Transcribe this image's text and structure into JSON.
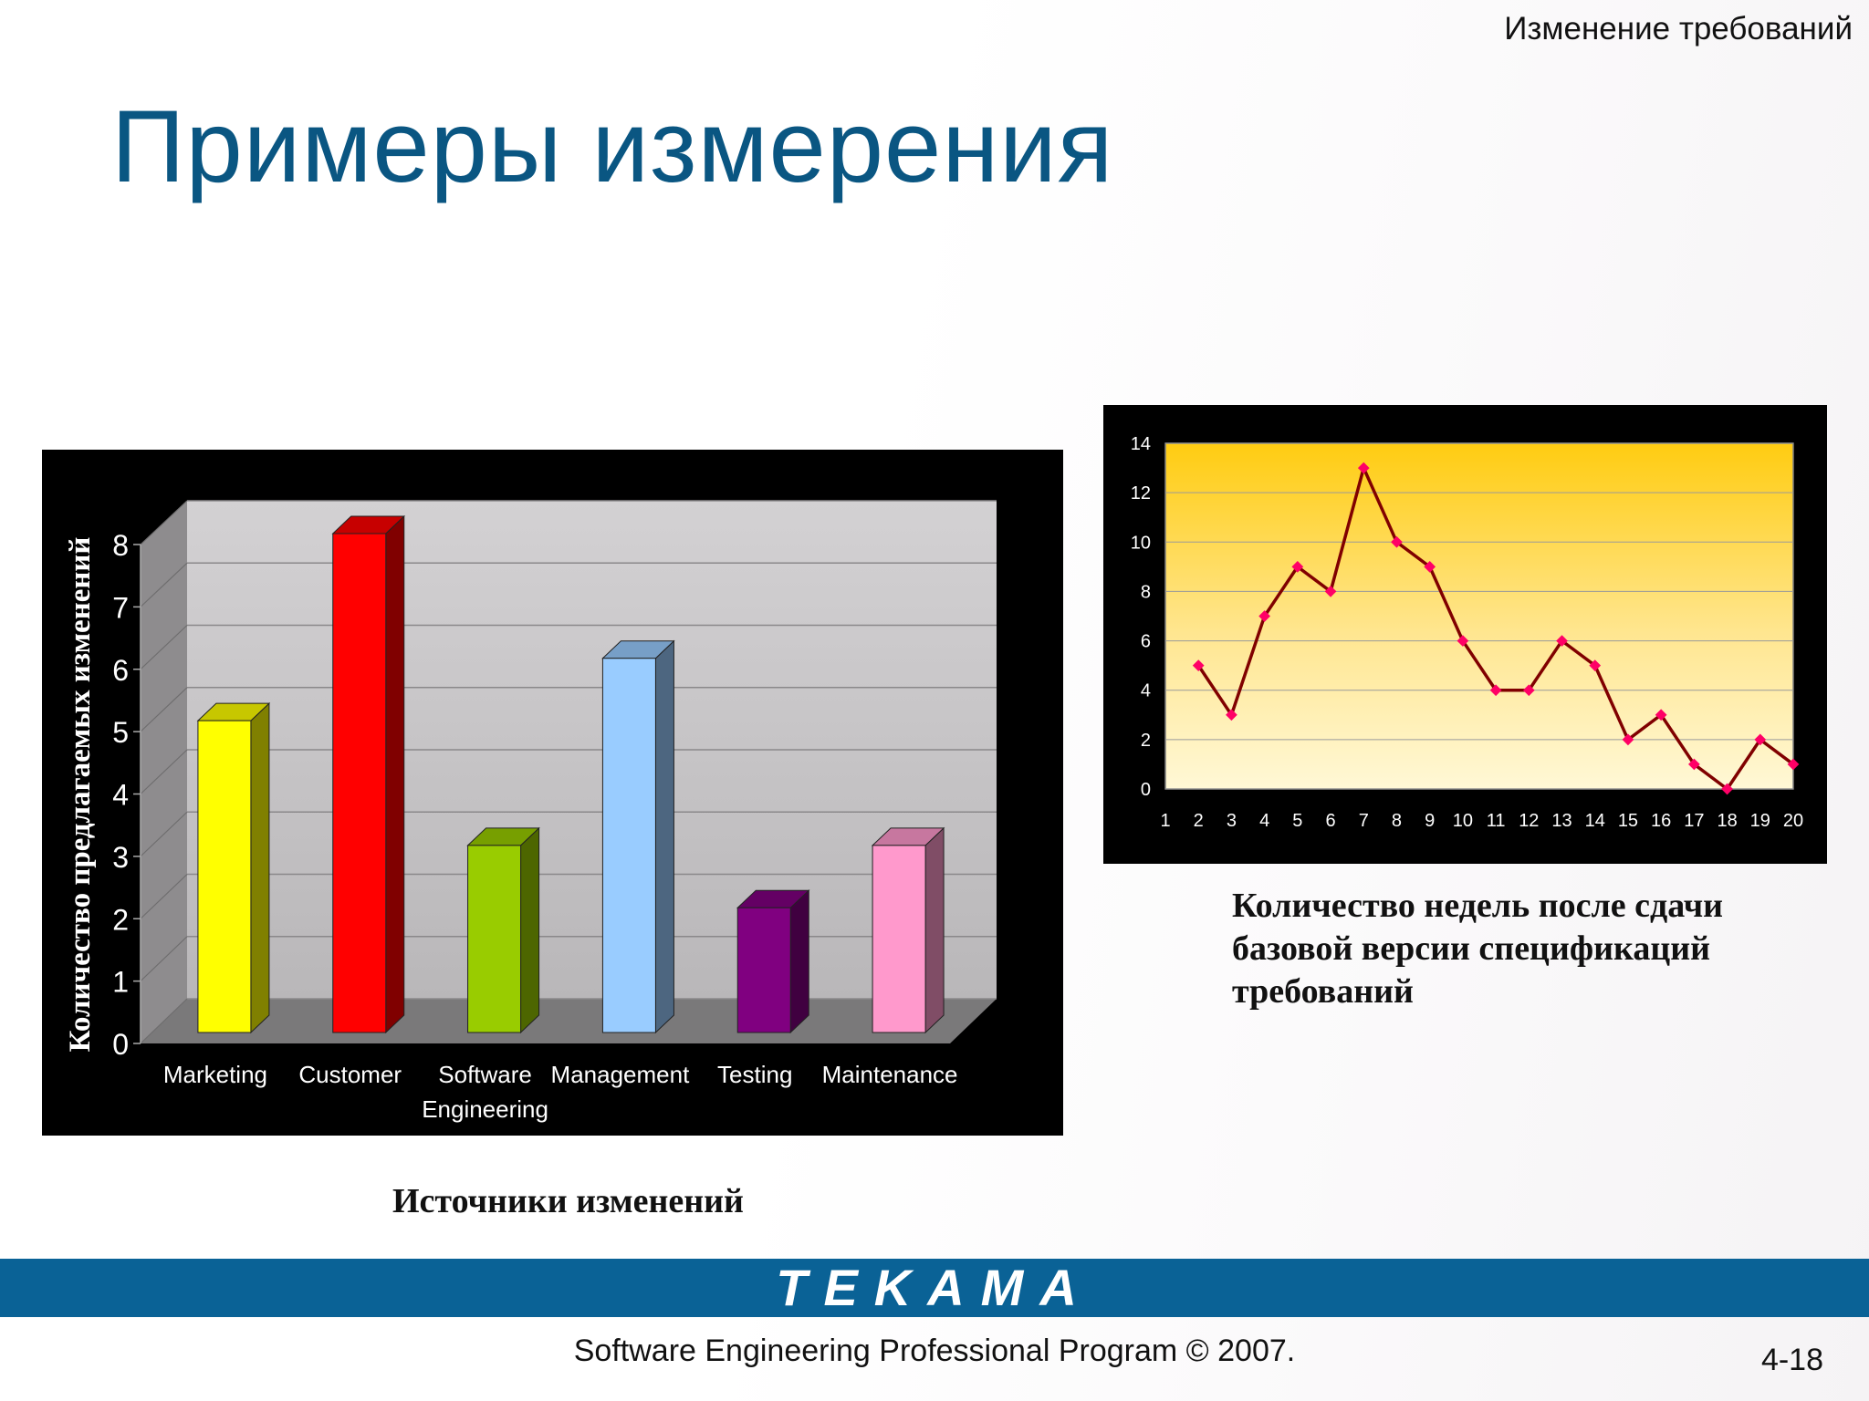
{
  "slide": {
    "header": "Изменение требований",
    "title": "Примеры измерения",
    "brand": "TEKAMA",
    "copyright": "Software Engineering Professional Program © 2007.",
    "page": "4-18"
  },
  "chart_data": [
    {
      "type": "bar",
      "categories": [
        "Marketing",
        "Customer",
        "Software Engineering",
        "Management",
        "Testing",
        "Maintenance"
      ],
      "category_lines": [
        [
          "Marketing"
        ],
        [
          "Customer"
        ],
        [
          "Software",
          "Engineering"
        ],
        [
          "Management"
        ],
        [
          "Testing"
        ],
        [
          "Maintenance"
        ]
      ],
      "values": [
        5,
        8,
        3,
        6,
        2,
        3
      ],
      "colors": [
        "#ffff00",
        "#ff0000",
        "#99cc00",
        "#99ccff",
        "#800080",
        "#ff99cc"
      ],
      "ylabel": "Количество предлагаемых изменений",
      "caption": "Источники изменений",
      "yticks": [
        "0",
        "1",
        "2",
        "3",
        "4",
        "5",
        "6",
        "7",
        "8"
      ],
      "ylim": [
        0,
        8
      ],
      "grid": true
    },
    {
      "type": "line",
      "x": [
        1,
        2,
        3,
        4,
        5,
        6,
        7,
        8,
        9,
        10,
        11,
        12,
        13,
        14,
        15,
        16,
        17,
        18,
        19,
        20
      ],
      "values": [
        null,
        5,
        3,
        7,
        9,
        8,
        13,
        10,
        9,
        6,
        4,
        4,
        6,
        5,
        2,
        3,
        1,
        0,
        2,
        1
      ],
      "xticks": [
        "1",
        "2",
        "3",
        "4",
        "5",
        "6",
        "7",
        "8",
        "9",
        "10",
        "11",
        "12",
        "13",
        "14",
        "15",
        "16",
        "17",
        "18",
        "19",
        "20"
      ],
      "yticks": [
        "0",
        "2",
        "4",
        "6",
        "8",
        "10",
        "12",
        "14"
      ],
      "ylim": [
        0,
        14
      ],
      "caption_lines": [
        "Количество недель после сдачи",
        "базовой версии спецификаций",
        "требований"
      ],
      "line_color": "#800000",
      "marker_color": "#ff0066",
      "grid": true
    }
  ]
}
